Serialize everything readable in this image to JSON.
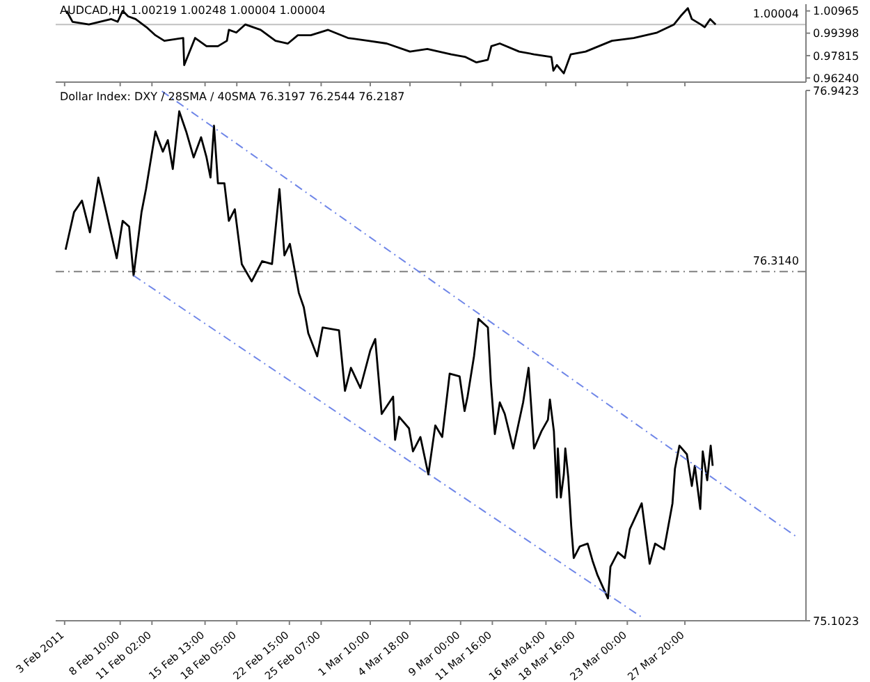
{
  "chart_data": [
    {
      "type": "line",
      "title": "AUDCAD,H1  1.00219 1.00248 1.00004 1.00004",
      "tick_labels": "y",
      "grid": false,
      "legend": false,
      "marker": "none",
      "xlim": [
        "2011-02-03T00:00",
        "2011-04-07T00:00"
      ],
      "xticks": [
        {
          "value": "2011-02-03T18:00",
          "label": null
        },
        {
          "value": "2011-02-08T10:00",
          "label": null
        },
        {
          "value": "2011-02-11T02:00",
          "label": null
        },
        {
          "value": "2011-02-15T13:00",
          "label": null
        },
        {
          "value": "2011-02-18T05:00",
          "label": null
        },
        {
          "value": "2011-02-22T15:00",
          "label": null
        },
        {
          "value": "2011-02-25T07:00",
          "label": null
        },
        {
          "value": "2011-03-01T10:00",
          "label": null
        },
        {
          "value": "2011-03-04T18:00",
          "label": null
        },
        {
          "value": "2011-03-09T00:00",
          "label": null
        },
        {
          "value": "2011-03-11T16:00",
          "label": null
        },
        {
          "value": "2011-03-16T04:00",
          "label": null
        },
        {
          "value": "2011-03-18T16:00",
          "label": null
        },
        {
          "value": "2011-03-23T00:00",
          "label": null
        },
        {
          "value": "2011-03-27T20:00",
          "label": null
        }
      ],
      "ylim": [
        0.9595,
        1.0144
      ],
      "yticks": [
        1.00965,
        0.99398,
        0.97815,
        {
          "value": 0.9624,
          "label": "0.96240"
        }
      ],
      "ref_lines": [
        {
          "axis": "y",
          "value": 1.00004,
          "label": "1.00004",
          "color": "#c0c0c0",
          "line_style": "solid"
        }
      ],
      "series": [
        {
          "color": "#000000",
          "line_style": "solid",
          "x": [
            "2011-02-03T22:00",
            "2011-02-04T10:00",
            "2011-02-05T19:00",
            "2011-02-07T16:00",
            "2011-02-08T05:00",
            "2011-02-08T15:00",
            "2011-02-09T02:00",
            "2011-02-09T17:00",
            "2011-02-10T15:00",
            "2011-02-11T09:00",
            "2011-02-12T03:00",
            "2011-02-13T17:00",
            "2011-02-13T19:00",
            "2011-02-14T17:00",
            "2011-02-15T16:00",
            "2011-02-16T15:00",
            "2011-02-17T09:00",
            "2011-02-17T13:00",
            "2011-02-18T04:00",
            "2011-02-18T22:00",
            "2011-02-20T05:00",
            "2011-02-21T11:00",
            "2011-02-22T12:00",
            "2011-02-23T08:00",
            "2011-02-24T10:00",
            "2011-02-25T21:00",
            "2011-02-27T13:00",
            "2011-03-01T06:00",
            "2011-03-02T19:00",
            "2011-03-04T18:00",
            "2011-03-06T05:00",
            "2011-03-08T05:00",
            "2011-03-09T10:00",
            "2011-03-10T08:00",
            "2011-03-11T07:00",
            "2011-03-11T14:00",
            "2011-03-12T07:00",
            "2011-03-13T22:00",
            "2011-03-15T04:00",
            "2011-03-16T15:00",
            "2011-03-16T19:00",
            "2011-03-17T02:00",
            "2011-03-17T16:00",
            "2011-03-18T06:00",
            "2011-03-19T12:00",
            "2011-03-21T17:00",
            "2011-03-23T13:00",
            "2011-03-25T12:00",
            "2011-03-26T22:00",
            "2011-03-27T11:00",
            "2011-03-28T02:00",
            "2011-03-28T10:00",
            "2011-03-29T04:00",
            "2011-03-29T12:00",
            "2011-03-29T23:00",
            "2011-03-30T10:00"
          ],
          "values": [
            1.0097,
            1.002,
            1.0001,
            1.0039,
            1.002,
            1.0097,
            1.0058,
            1.0039,
            0.9982,
            0.9925,
            0.9886,
            0.9906,
            0.9715,
            0.9906,
            0.9848,
            0.9848,
            0.9886,
            0.9963,
            0.9944,
            1.0001,
            0.9963,
            0.9886,
            0.9867,
            0.9925,
            0.9925,
            0.9963,
            0.9906,
            0.9886,
            0.9867,
            0.981,
            0.9829,
            0.9791,
            0.9772,
            0.9734,
            0.9753,
            0.9848,
            0.9867,
            0.981,
            0.9791,
            0.9772,
            0.9676,
            0.9715,
            0.9657,
            0.9791,
            0.981,
            0.9886,
            0.9906,
            0.9944,
            1.0001,
            1.0058,
            1.0116,
            1.0039,
            1.0001,
            0.9982,
            1.0039,
            1.0001
          ]
        }
      ]
    },
    {
      "type": "line",
      "title": "Dollar Index: DXY / 28SMA / 40SMA 76.3197 76.2544 76.2187",
      "grid": false,
      "legend": false,
      "marker": "none",
      "xlim": [
        "2011-02-03T00:00",
        "2011-04-07T00:00"
      ],
      "xticks": [
        {
          "value": "2011-02-03T18:00",
          "label": "3 Feb 2011"
        },
        {
          "value": "2011-02-08T10:00",
          "label": "8 Feb 10:00"
        },
        {
          "value": "2011-02-11T02:00",
          "label": "11 Feb 02:00"
        },
        {
          "value": "2011-02-15T13:00",
          "label": "15 Feb 13:00"
        },
        {
          "value": "2011-02-18T05:00",
          "label": "18 Feb 05:00"
        },
        {
          "value": "2011-02-22T15:00",
          "label": "22 Feb 15:00"
        },
        {
          "value": "2011-02-25T07:00",
          "label": "25 Feb 07:00"
        },
        {
          "value": "2011-03-01T10:00",
          "label": "1 Mar 10:00"
        },
        {
          "value": "2011-03-04T18:00",
          "label": "4 Mar 18:00"
        },
        {
          "value": "2011-03-09T00:00",
          "label": "9 Mar 00:00"
        },
        {
          "value": "2011-03-11T16:00",
          "label": "11 Mar 16:00"
        },
        {
          "value": "2011-03-16T04:00",
          "label": "16 Mar 04:00"
        },
        {
          "value": "2011-03-18T16:00",
          "label": "18 Mar 16:00"
        },
        {
          "value": "2011-03-23T00:00",
          "label": "23 Mar 00:00"
        },
        {
          "value": "2011-03-27T20:00",
          "label": "27 Mar 20:00"
        }
      ],
      "ylim": [
        75.1023,
        76.9423
      ],
      "yticks": [
        76.9423,
        75.1023
      ],
      "ref_lines": [
        {
          "axis": "y",
          "value": 76.314,
          "label": "76.3140",
          "color": "#808080",
          "line_style": "dashed"
        }
      ],
      "series": [
        {
          "color": "#000000",
          "line_style": "solid",
          "x": [
            "2011-02-03T20:00",
            "2011-02-04T13:00",
            "2011-02-05T05:00",
            "2011-02-05T21:00",
            "2011-02-06T14:00",
            "2011-02-07T06:00",
            "2011-02-08T03:00",
            "2011-02-08T15:00",
            "2011-02-09T04:00",
            "2011-02-09T13:00",
            "2011-02-10T05:00",
            "2011-02-10T14:00",
            "2011-02-11T09:00",
            "2011-02-12T00:00",
            "2011-02-12T10:00",
            "2011-02-12T20:00",
            "2011-02-13T09:00",
            "2011-02-13T23:00",
            "2011-02-14T14:00",
            "2011-02-15T05:00",
            "2011-02-15T16:00",
            "2011-02-16T00:00",
            "2011-02-16T07:00",
            "2011-02-16T15:00",
            "2011-02-17T04:00",
            "2011-02-17T13:00",
            "2011-02-18T01:00",
            "2011-02-18T15:00",
            "2011-02-19T11:00",
            "2011-02-20T08:00",
            "2011-02-21T04:00",
            "2011-02-21T19:00",
            "2011-02-22T05:00",
            "2011-02-22T16:00",
            "2011-02-23T10:00",
            "2011-02-23T20:00",
            "2011-02-24T05:00",
            "2011-02-24T23:00",
            "2011-02-25T10:00",
            "2011-02-26T19:00",
            "2011-02-27T07:00",
            "2011-02-27T19:00",
            "2011-02-28T14:00",
            "2011-03-01T10:00",
            "2011-03-01T20:00",
            "2011-03-02T09:00",
            "2011-03-03T08:00",
            "2011-03-03T12:00",
            "2011-03-03T20:00",
            "2011-03-04T16:00",
            "2011-03-05T00:00",
            "2011-03-05T15:00",
            "2011-03-06T07:00",
            "2011-03-06T21:00",
            "2011-03-07T11:00",
            "2011-03-08T02:00",
            "2011-03-08T22:00",
            "2011-03-09T08:00",
            "2011-03-09T14:00",
            "2011-03-10T03:00",
            "2011-03-10T12:00",
            "2011-03-11T07:00",
            "2011-03-11T13:00",
            "2011-03-11T21:00",
            "2011-03-12T07:00",
            "2011-03-12T17:00",
            "2011-03-13T10:00",
            "2011-03-14T06:00",
            "2011-03-14T17:00",
            "2011-03-15T04:00",
            "2011-03-15T19:00",
            "2011-03-16T08:00",
            "2011-03-16T12:00",
            "2011-03-16T20:00",
            "2011-03-17T02:00",
            "2011-03-17T04:00",
            "2011-03-17T10:00",
            "2011-03-17T16:00",
            "2011-03-17T19:00",
            "2011-03-18T01:00",
            "2011-03-18T07:00",
            "2011-03-18T12:00",
            "2011-03-19T00:00",
            "2011-03-19T16:00",
            "2011-03-20T02:00",
            "2011-03-20T12:00",
            "2011-03-21T09:00",
            "2011-03-21T14:00",
            "2011-03-22T05:00",
            "2011-03-22T19:00",
            "2011-03-23T05:00",
            "2011-03-24T05:00",
            "2011-03-24T21:00",
            "2011-03-25T08:00",
            "2011-03-26T02:00",
            "2011-03-26T19:00",
            "2011-03-27T00:00",
            "2011-03-27T09:00",
            "2011-03-28T00:00",
            "2011-03-28T10:00",
            "2011-03-28T16:00",
            "2011-03-29T03:00",
            "2011-03-29T08:00",
            "2011-03-29T17:00",
            "2011-03-30T00:00",
            "2011-03-30T04:00"
          ],
          "values": [
            76.39,
            76.52,
            76.56,
            76.45,
            76.64,
            76.52,
            76.36,
            76.49,
            76.47,
            76.3,
            76.52,
            76.6,
            76.8,
            76.73,
            76.77,
            76.67,
            76.87,
            76.8,
            76.71,
            76.78,
            76.71,
            76.64,
            76.82,
            76.62,
            76.62,
            76.49,
            76.53,
            76.34,
            76.28,
            76.35,
            76.34,
            76.6,
            76.37,
            76.41,
            76.24,
            76.19,
            76.1,
            76.02,
            76.12,
            76.11,
            75.9,
            75.98,
            75.91,
            76.04,
            76.08,
            75.82,
            75.88,
            75.73,
            75.81,
            75.77,
            75.69,
            75.74,
            75.61,
            75.78,
            75.74,
            75.96,
            75.95,
            75.83,
            75.88,
            76.02,
            76.15,
            76.12,
            75.93,
            75.75,
            75.86,
            75.82,
            75.7,
            75.86,
            75.98,
            75.7,
            75.76,
            75.8,
            75.87,
            75.76,
            75.53,
            75.7,
            75.53,
            75.61,
            75.7,
            75.6,
            75.43,
            75.32,
            75.36,
            75.37,
            75.31,
            75.26,
            75.18,
            75.29,
            75.34,
            75.32,
            75.42,
            75.51,
            75.3,
            75.37,
            75.35,
            75.51,
            75.63,
            75.71,
            75.68,
            75.57,
            75.64,
            75.49,
            75.69,
            75.59,
            75.71,
            75.64
          ]
        },
        {
          "type": "line",
          "color": "#6f86e8",
          "line_style": "dashed",
          "x": [
            "2011-02-11T22:00",
            "2011-04-06T08:00"
          ],
          "values": [
            76.94,
            75.39
          ]
        },
        {
          "type": "line",
          "color": "#6f86e8",
          "line_style": "dashed",
          "x": [
            "2011-02-09T13:00",
            "2011-03-24T09:00"
          ],
          "values": [
            76.3,
            75.11
          ]
        }
      ]
    }
  ]
}
